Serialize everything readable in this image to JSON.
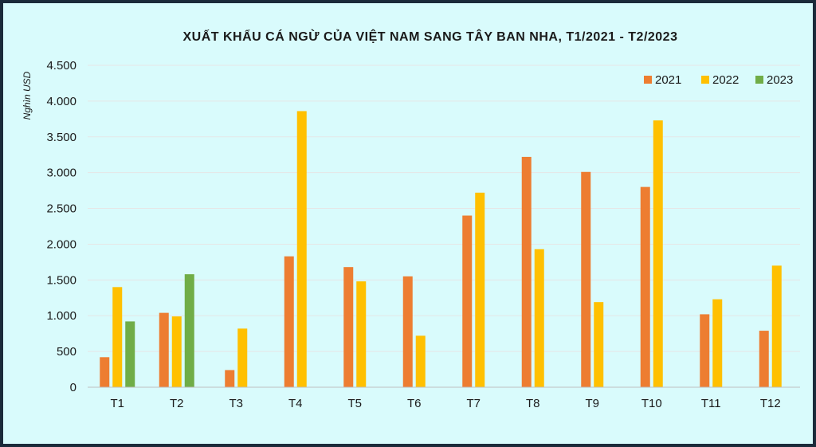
{
  "chart_data": {
    "type": "bar",
    "title": "XUẤT KHẨU CÁ NGỪ CỦA VIỆT NAM SANG TÂY BAN NHA, T1/2021 - T2/2023",
    "xlabel": "",
    "ylabel": "Nghìn USD",
    "ylim": [
      0,
      4500
    ],
    "yticks": [
      0,
      500,
      1000,
      1500,
      2000,
      2500,
      3000,
      3500,
      4000,
      4500
    ],
    "ytick_labels": [
      "0",
      "500",
      "1.000",
      "1.500",
      "2.000",
      "2.500",
      "3.000",
      "3.500",
      "4.000",
      "4.500"
    ],
    "categories": [
      "T1",
      "T2",
      "T3",
      "T4",
      "T5",
      "T6",
      "T7",
      "T8",
      "T9",
      "T10",
      "T11",
      "T12"
    ],
    "series": [
      {
        "name": "2021",
        "color": "#ed7d31",
        "values": [
          420,
          1040,
          240,
          1830,
          1680,
          1550,
          2400,
          3220,
          3010,
          2800,
          1020,
          790
        ]
      },
      {
        "name": "2022",
        "color": "#ffc000",
        "values": [
          1400,
          990,
          820,
          3860,
          1480,
          720,
          2720,
          1930,
          1190,
          3730,
          1230,
          1700
        ]
      },
      {
        "name": "2023",
        "color": "#70ad47",
        "values": [
          920,
          1580,
          null,
          null,
          null,
          null,
          null,
          null,
          null,
          null,
          null,
          null
        ]
      }
    ],
    "grid": true,
    "legend_position": "top-right",
    "background": "#d9fbfc",
    "gridline_color": "#e6e6e6"
  }
}
